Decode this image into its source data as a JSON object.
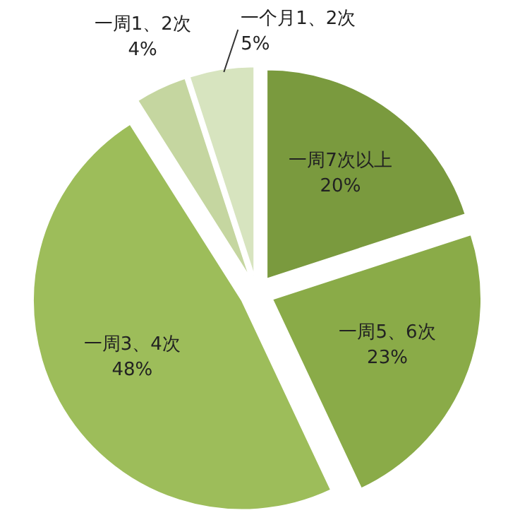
{
  "chart_data": {
    "type": "pie",
    "categories": [
      "一周7次以上",
      "一周5、6次",
      "一周3、4次",
      "一周1、2次",
      "一个月1、2次"
    ],
    "values": [
      20,
      23,
      48,
      4,
      5
    ],
    "colors": [
      "#7a9a3e",
      "#8aab48",
      "#9dbd5a",
      "#c5d6a0",
      "#d7e4bf"
    ],
    "value_labels": [
      "20%",
      "23%",
      "48%",
      "4%",
      "5%"
    ]
  }
}
